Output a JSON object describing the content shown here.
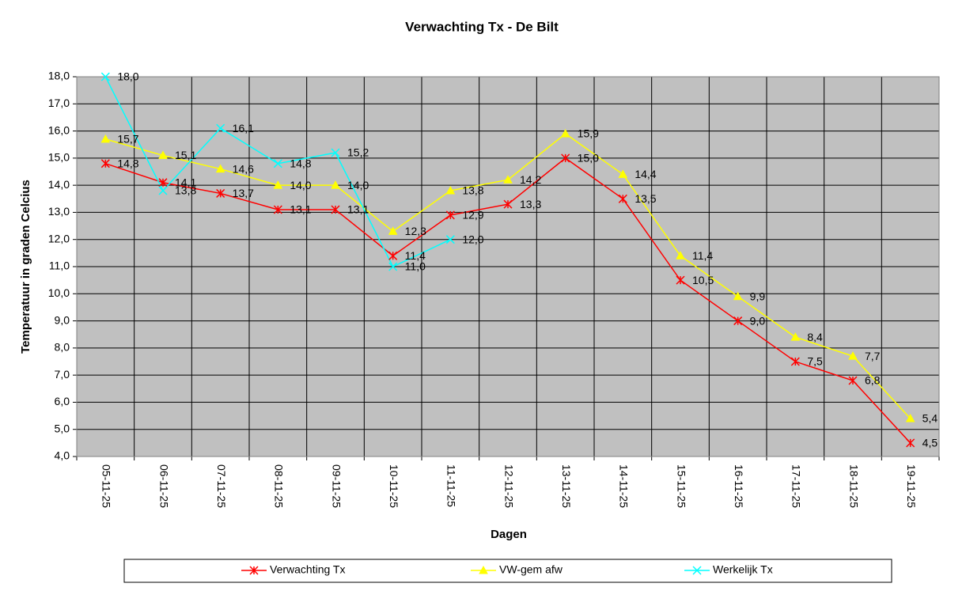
{
  "chart_data": {
    "type": "line",
    "title": "Verwachting Tx - De Bilt",
    "xlabel": "Dagen",
    "ylabel": "Temperatuur in graden Celcius",
    "categories": [
      "05-11-25",
      "06-11-25",
      "07-11-25",
      "08-11-25",
      "09-11-25",
      "10-11-25",
      "11-11-25",
      "12-11-25",
      "13-11-25",
      "14-11-25",
      "15-11-25",
      "16-11-25",
      "17-11-25",
      "18-11-25",
      "19-11-25"
    ],
    "series": [
      {
        "name": "Verwachting Tx",
        "color": "#ff0000",
        "marker": "asterisk",
        "values": [
          14.8,
          14.1,
          13.7,
          13.1,
          13.1,
          11.4,
          12.9,
          13.3,
          15.0,
          13.5,
          10.5,
          9.0,
          7.5,
          6.8,
          4.5
        ],
        "value_labels": [
          "14,8",
          "14,1",
          "13,7",
          "13,1",
          "13,1",
          "11,4",
          "12,9",
          "13,3",
          "15,0",
          "13,5",
          "10,5",
          "9,0",
          "7,5",
          "6,8",
          "4,5"
        ]
      },
      {
        "name": "VW-gem afw",
        "color": "#ffff00",
        "marker": "triangle",
        "values": [
          15.7,
          15.1,
          14.6,
          14.0,
          14.0,
          12.3,
          13.8,
          14.2,
          15.9,
          14.4,
          11.4,
          9.9,
          8.4,
          7.7,
          5.4
        ],
        "value_labels": [
          "15,7",
          "15,1",
          "14,6",
          "14,0",
          "14,0",
          "12,3",
          "13,8",
          "14,2",
          "15,9",
          "14,4",
          "11,4",
          "9,9",
          "8,4",
          "7,7",
          "5,4"
        ]
      },
      {
        "name": "Werkelijk Tx",
        "color": "#00ffff",
        "marker": "x",
        "values": [
          18.0,
          13.8,
          16.1,
          14.8,
          15.2,
          11.0,
          12.0,
          null,
          null,
          null,
          null,
          null,
          null,
          null,
          null
        ],
        "value_labels": [
          "18,0",
          "13,8",
          "16,1",
          "14,8",
          "15,2",
          "11,0",
          "12,0",
          null,
          null,
          null,
          null,
          null,
          null,
          null,
          null
        ]
      }
    ],
    "ylim": [
      4,
      18
    ],
    "yticks": [
      {
        "value": 4,
        "label": "4,0"
      },
      {
        "value": 5,
        "label": "5,0"
      },
      {
        "value": 6,
        "label": "6,0"
      },
      {
        "value": 7,
        "label": "7,0"
      },
      {
        "value": 8,
        "label": "8,0"
      },
      {
        "value": 9,
        "label": "9,0"
      },
      {
        "value": 10,
        "label": "10,0"
      },
      {
        "value": 11,
        "label": "11,0"
      },
      {
        "value": 12,
        "label": "12,0"
      },
      {
        "value": 13,
        "label": "13,0"
      },
      {
        "value": 14,
        "label": "14,0"
      },
      {
        "value": 15,
        "label": "15,0"
      },
      {
        "value": 16,
        "label": "16,0"
      },
      {
        "value": 17,
        "label": "17,0"
      },
      {
        "value": 18,
        "label": "18,0"
      }
    ],
    "grid": true,
    "legend": "bottom"
  }
}
